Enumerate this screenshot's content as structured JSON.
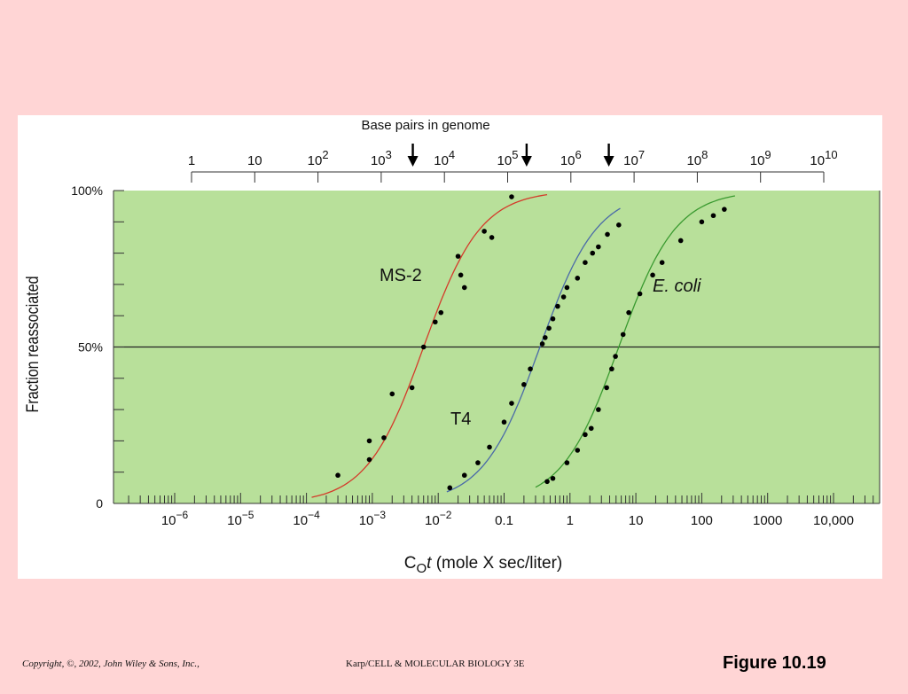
{
  "colors": {
    "slide_background": "#ffd5d5",
    "plot_background": "#b8e09a",
    "ms2_curve": "#d43a2a",
    "t4_curve": "#4a6aa8",
    "ecoli_curve": "#3a9a30",
    "points": "#000000"
  },
  "footer": {
    "copyright": "Copyright, ©, 2002, John Wiley & Sons, Inc.,",
    "book": "Karp/CELL & MOLECULAR BIOLOGY 3E",
    "figure": "Figure 10.19"
  },
  "chart_data": {
    "type": "scatter",
    "title": "",
    "xlabel": "C0t (mole X sec/liter)",
    "xlabel_parts": {
      "c": "C",
      "sub": "O",
      "t": "t",
      "rest": " (mole X sec/liter)"
    },
    "ylabel": "Fraction reassociated",
    "x_scale": "log",
    "xlim": [
      1e-07,
      100000.0
    ],
    "ylim": [
      0,
      100
    ],
    "x_ticks": [
      {
        "value": 1e-06,
        "base": "10",
        "exp": "−6"
      },
      {
        "value": 1e-05,
        "base": "10",
        "exp": "−5"
      },
      {
        "value": 0.0001,
        "base": "10",
        "exp": "−4"
      },
      {
        "value": 0.001,
        "base": "10",
        "exp": "−3"
      },
      {
        "value": 0.01,
        "base": "10",
        "exp": "−2"
      },
      {
        "value": 0.1,
        "base": "0.1",
        "exp": ""
      },
      {
        "value": 1,
        "base": "1",
        "exp": ""
      },
      {
        "value": 10,
        "base": "10",
        "exp": ""
      },
      {
        "value": 100,
        "base": "100",
        "exp": ""
      },
      {
        "value": 1000,
        "base": "1000",
        "exp": ""
      },
      {
        "value": 10000,
        "base": "10,000",
        "exp": ""
      }
    ],
    "y_ticks": [
      {
        "value": 100,
        "label": "100%"
      },
      {
        "value": 50,
        "label": "50%"
      },
      {
        "value": 0,
        "label": "0"
      }
    ],
    "reference_line_y": 50,
    "top_axis": {
      "label": "Base pairs in genome",
      "ticks": [
        {
          "base": "1",
          "exp": ""
        },
        {
          "base": "10",
          "exp": ""
        },
        {
          "base": "10",
          "exp": "2"
        },
        {
          "base": "10",
          "exp": "3"
        },
        {
          "base": "10",
          "exp": "4"
        },
        {
          "base": "10",
          "exp": "5"
        },
        {
          "base": "10",
          "exp": "6"
        },
        {
          "base": "10",
          "exp": "7"
        },
        {
          "base": "10",
          "exp": "8"
        },
        {
          "base": "10",
          "exp": "9"
        },
        {
          "base": "10",
          "exp": "10"
        }
      ],
      "arrows_bp_log10": [
        3.5,
        5.3,
        6.6
      ]
    },
    "series": [
      {
        "name": "MS-2",
        "label_style": "normal",
        "color_key": "ms2_curve",
        "curve_c0t_half": 0.006,
        "points": [
          [
            0.0003,
            9
          ],
          [
            0.0009,
            14
          ],
          [
            0.0009,
            20
          ],
          [
            0.0015,
            21
          ],
          [
            0.002,
            35
          ],
          [
            0.004,
            37
          ],
          [
            0.006,
            50
          ],
          [
            0.009,
            58
          ],
          [
            0.011,
            61
          ],
          [
            0.02,
            79
          ],
          [
            0.022,
            73
          ],
          [
            0.025,
            69
          ],
          [
            0.05,
            87
          ],
          [
            0.065,
            85
          ],
          [
            0.13,
            98
          ]
        ]
      },
      {
        "name": "T4",
        "label_style": "normal",
        "color_key": "t4_curve",
        "curve_c0t_half": 0.35,
        "points": [
          [
            0.015,
            5
          ],
          [
            0.025,
            9
          ],
          [
            0.04,
            13
          ],
          [
            0.06,
            18
          ],
          [
            0.1,
            26
          ],
          [
            0.13,
            32
          ],
          [
            0.2,
            38
          ],
          [
            0.25,
            43
          ],
          [
            0.38,
            51
          ],
          [
            0.42,
            53
          ],
          [
            0.48,
            56
          ],
          [
            0.55,
            59
          ],
          [
            0.65,
            63
          ],
          [
            0.8,
            66
          ],
          [
            0.9,
            69
          ],
          [
            1.3,
            72
          ],
          [
            1.7,
            77
          ],
          [
            2.2,
            80
          ],
          [
            2.7,
            82
          ],
          [
            3.7,
            86
          ],
          [
            5.5,
            89
          ]
        ]
      },
      {
        "name": "E. coli",
        "label_style": "italic",
        "color_key": "ecoli_curve",
        "curve_c0t_half": 5.5,
        "points": [
          [
            0.45,
            7
          ],
          [
            0.55,
            8
          ],
          [
            0.9,
            13
          ],
          [
            1.3,
            17
          ],
          [
            1.7,
            22
          ],
          [
            2.1,
            24
          ],
          [
            2.7,
            30
          ],
          [
            3.6,
            37
          ],
          [
            4.3,
            43
          ],
          [
            4.9,
            47
          ],
          [
            6.4,
            54
          ],
          [
            7.8,
            61
          ],
          [
            11.5,
            67
          ],
          [
            18,
            73
          ],
          [
            25,
            77
          ],
          [
            48,
            84
          ],
          [
            100,
            90
          ],
          [
            150,
            92
          ],
          [
            220,
            94
          ]
        ]
      }
    ]
  }
}
